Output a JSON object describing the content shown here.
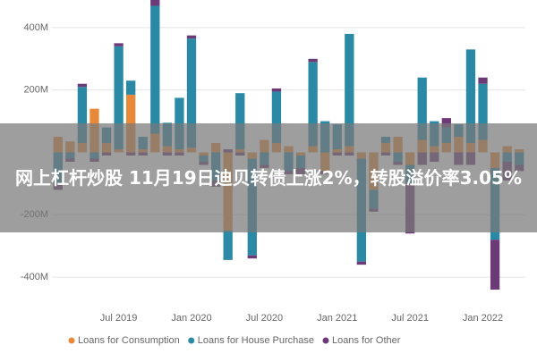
{
  "chart_data": {
    "type": "stacked_bar",
    "annotations": [
      "网上杠杆炒股 11月19日迪贝转债上涨2%，转股溢价率3.05%"
    ],
    "categories": [
      null,
      null,
      null,
      null,
      null,
      "Jul 2019",
      null,
      null,
      null,
      null,
      null,
      "Jan 2020",
      null,
      null,
      null,
      null,
      null,
      "Jul 2020",
      null,
      null,
      null,
      null,
      null,
      "Jan 2021",
      null,
      null,
      null,
      null,
      null,
      "Jul 2021",
      null,
      null,
      null,
      null,
      null,
      "Jan 2022",
      null,
      null,
      null
    ],
    "series": [
      {
        "name": "Loans for Consumption",
        "color": "#e8893a",
        "values": [
          50,
          35,
          30,
          140,
          30,
          10,
          185,
          10,
          60,
          20,
          10,
          15,
          -10,
          30,
          -250,
          10,
          -20,
          40,
          30,
          20,
          -10,
          20,
          -60,
          10,
          20,
          -20,
          -120,
          30,
          50,
          -40,
          40,
          20,
          30,
          50,
          30,
          40,
          -50,
          20,
          10
        ]
      },
      {
        "name": "Loans for House Purchase",
        "color": "#2a8aa6",
        "values": [
          -100,
          -20,
          180,
          -20,
          50,
          330,
          45,
          40,
          410,
          75,
          165,
          350,
          -20,
          -90,
          -95,
          180,
          -310,
          -40,
          165,
          -60,
          -40,
          270,
          100,
          80,
          360,
          -330,
          -60,
          20,
          -30,
          -60,
          200,
          80,
          50,
          40,
          300,
          180,
          -230,
          -30,
          -40
        ]
      },
      {
        "name": "Loans for Other",
        "color": "#6d3a78",
        "values": [
          -20,
          -10,
          10,
          -10,
          -10,
          10,
          -10,
          -10,
          20,
          -10,
          -10,
          10,
          -10,
          -20,
          10,
          -10,
          -10,
          -10,
          10,
          -10,
          -20,
          10,
          -10,
          -10,
          -10,
          -10,
          -10,
          -10,
          -10,
          -160,
          -40,
          -30,
          30,
          -40,
          -40,
          20,
          -160,
          -60,
          -20
        ]
      }
    ],
    "ylim": [
      -480,
      480
    ],
    "yticks": [
      {
        "value": 400,
        "label": "400M"
      },
      {
        "value": 200,
        "label": "200M"
      },
      {
        "value": -200,
        "label": "-200M"
      },
      {
        "value": -400,
        "label": "-400M"
      }
    ],
    "grid": true
  }
}
